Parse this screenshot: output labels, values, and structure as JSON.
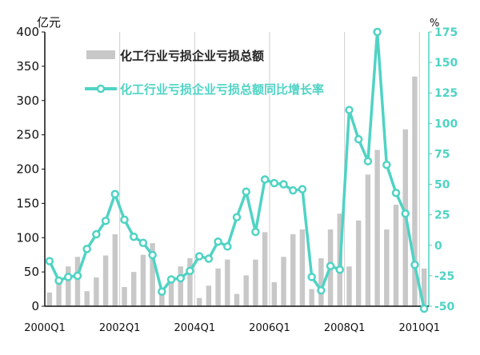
{
  "chart_data": {
    "type": "bar+line",
    "left_unit": "亿元",
    "right_unit": "%",
    "left_ylim": [
      0,
      400
    ],
    "left_ticks": [
      "0",
      "50",
      "100",
      "150",
      "200",
      "250",
      "300",
      "350",
      "400"
    ],
    "right_ylim": [
      -50,
      175
    ],
    "right_ticks": [
      "-50",
      "-25",
      "0",
      "25",
      "50",
      "75",
      "100",
      "125",
      "150",
      "175"
    ],
    "x_tick_labels": [
      "2000Q1",
      "2002Q1",
      "2004Q1",
      "2006Q1",
      "2008Q1",
      "2010Q1"
    ],
    "grid": "vertical",
    "legend_position": "top-center",
    "x": [
      "2000Q1",
      "2000Q2",
      "2000Q3",
      "2000Q4",
      "2001Q1",
      "2001Q2",
      "2001Q3",
      "2001Q4",
      "2002Q1",
      "2002Q2",
      "2002Q3",
      "2002Q4",
      "2003Q1",
      "2003Q2",
      "2003Q3",
      "2003Q4",
      "2004Q1",
      "2004Q2",
      "2004Q3",
      "2004Q4",
      "2005Q1",
      "2005Q2",
      "2005Q3",
      "2005Q4",
      "2006Q1",
      "2006Q2",
      "2006Q3",
      "2006Q4",
      "2007Q1",
      "2007Q2",
      "2007Q3",
      "2007Q4",
      "2008Q1",
      "2008Q2",
      "2008Q3",
      "2008Q4",
      "2009Q1",
      "2009Q2",
      "2009Q3",
      "2009Q4",
      "2010Q1"
    ],
    "series": [
      {
        "name": "化工行业亏损企业亏损总额",
        "type": "bar",
        "axis": "left",
        "color": "#c8c8c8",
        "values": [
          20,
          40,
          58,
          72,
          22,
          42,
          74,
          105,
          28,
          50,
          75,
          92,
          20,
          38,
          58,
          70,
          12,
          30,
          55,
          68,
          18,
          45,
          68,
          108,
          35,
          72,
          105,
          112,
          25,
          70,
          112,
          135,
          58,
          125,
          192,
          228,
          112,
          148,
          258,
          335,
          55
        ]
      },
      {
        "name": "化工行业亏损企业亏损总额同比增长率",
        "type": "line",
        "axis": "right",
        "color": "#4fd3c4",
        "values": [
          -13,
          -29,
          -26,
          -25,
          -3,
          9,
          20,
          42,
          21,
          7,
          2,
          -8,
          -38,
          -28,
          -27,
          -21,
          -9,
          -11,
          3,
          -1,
          23,
          44,
          11,
          54,
          51,
          50,
          45,
          46,
          -26,
          -37,
          -17,
          -20,
          111,
          87,
          69,
          183,
          66,
          43,
          26,
          -16,
          -52
        ]
      }
    ]
  }
}
